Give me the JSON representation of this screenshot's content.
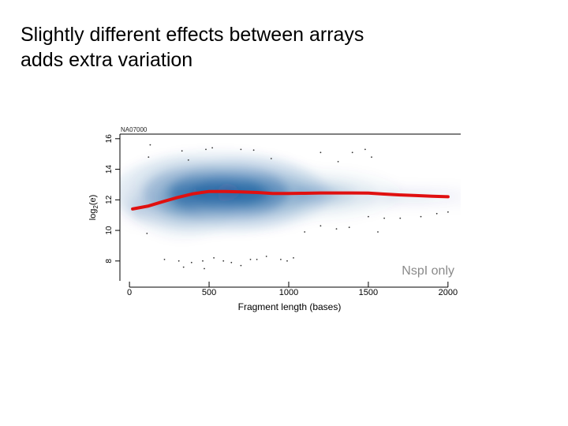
{
  "slide": {
    "title_lines": [
      "Slightly different effects between arrays",
      "adds extra variation"
    ]
  },
  "chart_data": {
    "type": "scatter",
    "title": "",
    "corner_label": "NA07000",
    "annotation": "NspI only",
    "xlabel": "Fragment length (bases)",
    "ylabel": {
      "base": "log",
      "subscript": "2",
      "suffix": "(e)"
    },
    "xlim": [
      -60,
      2080
    ],
    "ylim": [
      6.7,
      16.3
    ],
    "xticks": [
      0,
      500,
      1000,
      1500,
      2000
    ],
    "yticks": [
      8,
      10,
      12,
      14,
      16
    ],
    "grid": false,
    "colors": {
      "density": "#0a4f96",
      "fit_line": "#e01010",
      "axis": "#000000"
    },
    "density_regions": [
      {
        "x": 540,
        "y": 12.5,
        "sx": 270,
        "sy": 1.1,
        "weight": 1.0
      },
      {
        "x": 770,
        "y": 12.4,
        "sx": 200,
        "sy": 1.0,
        "weight": 0.8
      },
      {
        "x": 330,
        "y": 12.1,
        "sx": 140,
        "sy": 1.1,
        "weight": 0.55
      },
      {
        "x": 1180,
        "y": 12.35,
        "sx": 220,
        "sy": 0.7,
        "weight": 0.35
      },
      {
        "x": 1750,
        "y": 12.2,
        "sx": 280,
        "sy": 0.4,
        "weight": 0.1
      },
      {
        "x": 70,
        "y": 11.5,
        "sx": 70,
        "sy": 0.6,
        "weight": 0.15
      }
    ],
    "fit_line": {
      "x": [
        20,
        120,
        200,
        300,
        400,
        500,
        600,
        700,
        800,
        900,
        1000,
        1100,
        1200,
        1300,
        1400,
        1500,
        1600,
        1700,
        1800,
        1900,
        2000
      ],
      "y": [
        11.4,
        11.6,
        11.85,
        12.15,
        12.4,
        12.55,
        12.55,
        12.52,
        12.48,
        12.42,
        12.42,
        12.43,
        12.45,
        12.45,
        12.45,
        12.44,
        12.38,
        12.32,
        12.28,
        12.24,
        12.2
      ]
    },
    "outliers": [
      [
        130,
        15.6
      ],
      [
        330,
        15.2
      ],
      [
        480,
        15.3
      ],
      [
        520,
        15.4
      ],
      [
        700,
        15.3
      ],
      [
        780,
        15.25
      ],
      [
        1200,
        15.1
      ],
      [
        1400,
        15.1
      ],
      [
        1480,
        15.3
      ],
      [
        120,
        14.8
      ],
      [
        370,
        14.6
      ],
      [
        890,
        14.7
      ],
      [
        1520,
        14.8
      ],
      [
        1310,
        14.5
      ],
      [
        110,
        9.8
      ],
      [
        220,
        8.1
      ],
      [
        310,
        8.0
      ],
      [
        340,
        7.6
      ],
      [
        390,
        7.9
      ],
      [
        460,
        8.0
      ],
      [
        470,
        7.5
      ],
      [
        530,
        8.2
      ],
      [
        590,
        8.0
      ],
      [
        640,
        7.9
      ],
      [
        700,
        7.7
      ],
      [
        760,
        8.1
      ],
      [
        800,
        8.1
      ],
      [
        860,
        8.3
      ],
      [
        950,
        8.1
      ],
      [
        990,
        8.0
      ],
      [
        1030,
        8.2
      ],
      [
        1100,
        9.9
      ],
      [
        1200,
        10.3
      ],
      [
        1300,
        10.1
      ],
      [
        1380,
        10.2
      ],
      [
        1500,
        10.9
      ],
      [
        1600,
        10.8
      ],
      [
        1700,
        10.8
      ],
      [
        1830,
        10.9
      ],
      [
        1930,
        11.1
      ],
      [
        2000,
        11.2
      ],
      [
        1560,
        9.9
      ]
    ]
  }
}
